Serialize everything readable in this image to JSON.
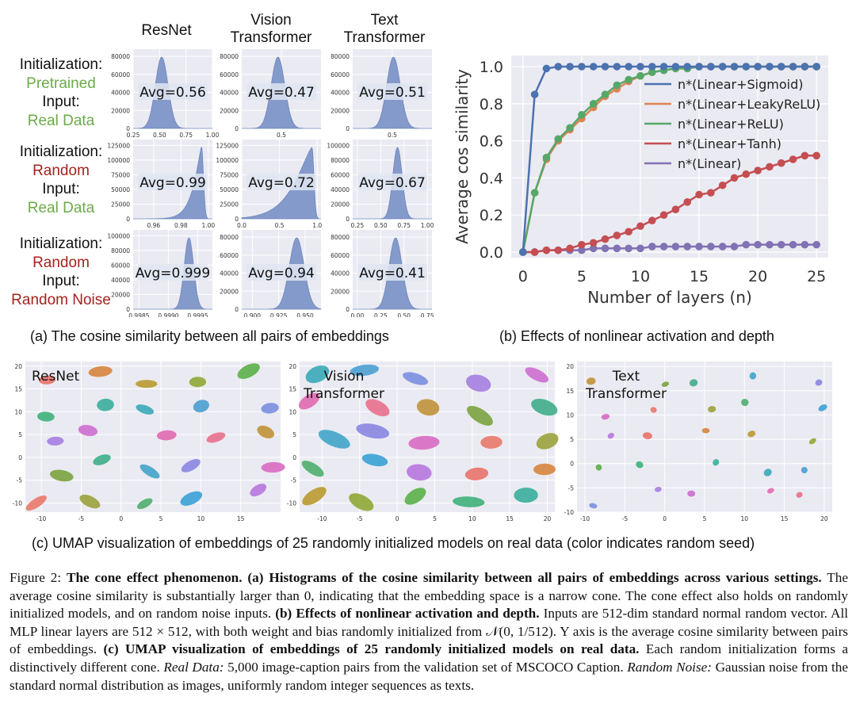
{
  "panel_a": {
    "columns": [
      "ResNet",
      "Vision Transformer",
      "Text Transformer"
    ],
    "rows": [
      {
        "init_label": "Initialization:",
        "init_value": "Pretrained",
        "input_label": "Input:",
        "input_value": "Real Data",
        "init_color": "#6bab4a",
        "input_color": "#6bab4a"
      },
      {
        "init_label": "Initialization:",
        "init_value": "Random",
        "input_label": "Input:",
        "input_value": "Real Data",
        "init_color": "#a3231f",
        "input_color": "#6bab4a"
      },
      {
        "init_label": "Initialization:",
        "init_value": "Random",
        "input_label": "Input:",
        "input_value": "Random Noise",
        "init_color": "#a3231f",
        "input_color": "#a3231f"
      }
    ],
    "subcaption": "(a) The cosine similarity between all pairs of embeddings"
  },
  "panel_b": {
    "subcaption": "(b) Effects of nonlinear activation and depth"
  },
  "panel_c": {
    "subcaption": "(c) UMAP visualization of embeddings of 25 randomly initialized models on real data (color indicates random seed)",
    "plots": [
      {
        "title": "ResNet",
        "xticks": [
          "-10",
          "-5",
          "0",
          "5",
          "10",
          "15"
        ],
        "yticks": [
          "20",
          "15",
          "10",
          "5",
          "0",
          "-5",
          "-10"
        ]
      },
      {
        "title": "Vision Transformer",
        "xticks": [
          "-10",
          "-5",
          "0",
          "5",
          "10",
          "15",
          "20"
        ],
        "yticks": [
          "20",
          "15",
          "10",
          "5",
          "0",
          "-5",
          "-10"
        ]
      },
      {
        "title": "Text Transformer",
        "xticks": [
          "-10",
          "-5",
          "0",
          "5",
          "10",
          "15",
          "20"
        ],
        "yticks": [
          "20",
          "15",
          "10",
          "5",
          "0",
          "-5",
          "-10"
        ]
      }
    ]
  },
  "caption": {
    "fig_label": "Figure 2:",
    "title": "The cone effect phenomenon.",
    "a_head": "(a) Histograms of the cosine similarity between all pairs of embeddings across various settings.",
    "a_text": "The average cosine similarity is substantially larger than 0, indicating that the embedding space is a narrow cone. The cone effect also holds on randomly initialized models, and on random noise inputs.",
    "b_head": "(b) Effects of nonlinear activation and depth.",
    "b_text1": "Inputs are 512-dim standard normal random vector. All MLP linear layers are 512 × 512, with both weight and bias randomly initialized from",
    "b_math": "𝒩(0, 1/512)",
    "b_text2": ". Y axis is the average cosine similarity between pairs of embeddings.",
    "c_head": "(c) UMAP visualization of embeddings of 25 randomly initialized models on real data.",
    "c_text": "Each random initialization forms a distinctively different cone.",
    "real_label": "Real Data:",
    "real_text": "5,000 image-caption pairs from the validation set of MSCOCO Caption.",
    "noise_label": "Random Noise:",
    "noise_text": "Gaussian noise from the standard normal distribution as images, uniformly random integer sequences as texts."
  },
  "chart_data": [
    {
      "id": "histograms",
      "type": "area",
      "title": "Histograms of cosine similarity",
      "panels": [
        {
          "row": 0,
          "col": 0,
          "avg_label": "Avg=0.56",
          "xlim": [
            0.25,
            1.0
          ],
          "xticks": [
            "0.25",
            "0.50",
            "0.75",
            "1.00"
          ],
          "yticks": [
            "0",
            "20000",
            "40000",
            "60000",
            "80000"
          ],
          "peak": 0.52,
          "spread": 0.06
        },
        {
          "row": 0,
          "col": 1,
          "avg_label": "Avg=0.47",
          "xlim": [
            0.15,
            0.85
          ],
          "xticks": [
            "0.5"
          ],
          "yticks": [
            "0",
            "20000",
            "40000",
            "60000",
            "80000"
          ],
          "peak": 0.47,
          "spread": 0.06
        },
        {
          "row": 0,
          "col": 2,
          "avg_label": "Avg=0.51",
          "xlim": [
            0.15,
            0.85
          ],
          "xticks": [
            "0.5"
          ],
          "yticks": [
            "0",
            "20000",
            "40000",
            "60000",
            "80000"
          ],
          "peak": 0.51,
          "spread": 0.06
        },
        {
          "row": 1,
          "col": 0,
          "avg_label": "Avg=0.99",
          "xlim": [
            0.945,
            1.003
          ],
          "xticks": [
            "0.96",
            "0.98",
            "1.00"
          ],
          "yticks": [
            "0",
            "25000",
            "50000",
            "75000",
            "100000",
            "125000"
          ],
          "peak": 0.995,
          "spread": 0.006
        },
        {
          "row": 1,
          "col": 1,
          "avg_label": "Avg=0.72",
          "xlim": [
            0.0,
            1.05
          ],
          "xticks": [
            "0.0",
            "0.5",
            "1.0"
          ],
          "yticks": [
            "0",
            "25000",
            "50000",
            "75000",
            "100000",
            "125000"
          ],
          "peak": 0.93,
          "spread": 0.22
        },
        {
          "row": 1,
          "col": 2,
          "avg_label": "Avg=0.67",
          "xlim": [
            0.2,
            1.05
          ],
          "xticks": [
            "0.25",
            "0.50",
            "0.75",
            "1.00"
          ],
          "yticks": [
            "0",
            "20000",
            "40000",
            "60000",
            "80000",
            "100000"
          ],
          "peak": 0.68,
          "spread": 0.05
        },
        {
          "row": 2,
          "col": 0,
          "avg_label": "Avg=0.999",
          "xlim": [
            0.9984,
            0.99975
          ],
          "xticks": [
            "0.9985",
            "0.9990",
            "0.9995"
          ],
          "yticks": [
            "0",
            "20000",
            "40000",
            "60000",
            "80000",
            "100000"
          ],
          "peak": 0.99935,
          "spread": 8e-05
        },
        {
          "row": 2,
          "col": 1,
          "avg_label": "Avg=0.94",
          "xlim": [
            0.89,
            0.965
          ],
          "xticks": [
            "0.900",
            "0.925",
            "0.950"
          ],
          "yticks": [
            "0",
            "20000",
            "40000",
            "60000",
            "80000"
          ],
          "peak": 0.942,
          "spread": 0.007
        },
        {
          "row": 2,
          "col": 2,
          "avg_label": "Avg=0.41",
          "xlim": [
            -0.05,
            0.8
          ],
          "xticks": [
            "0.00",
            "0.25",
            "0.50",
            "0.75"
          ],
          "yticks": [
            "0",
            "20000",
            "40000",
            "60000",
            "80000"
          ],
          "peak": 0.41,
          "spread": 0.07
        }
      ]
    },
    {
      "id": "depth",
      "type": "line",
      "title": "",
      "xlabel": "Number of layers (n)",
      "ylabel": "Average cos similarity",
      "xlim": [
        -1,
        26
      ],
      "ylim": [
        -0.03,
        1.06
      ],
      "xticks": [
        0,
        5,
        10,
        15,
        20,
        25
      ],
      "yticks": [
        0.0,
        0.2,
        0.4,
        0.6,
        0.8,
        1.0
      ],
      "ytick_labels": [
        "0.0",
        "0.2",
        "0.4",
        "0.6",
        "0.8",
        "1.0"
      ],
      "x": [
        0,
        1,
        2,
        3,
        4,
        5,
        6,
        7,
        8,
        9,
        10,
        11,
        12,
        13,
        14,
        15,
        16,
        17,
        18,
        19,
        20,
        21,
        22,
        23,
        24,
        25
      ],
      "series": [
        {
          "name": "n*(Linear+Sigmoid)",
          "color": "#4c72b0",
          "values": [
            0.0,
            0.85,
            0.99,
            1.0,
            1.0,
            1.0,
            1.0,
            1.0,
            1.0,
            1.0,
            1.0,
            1.0,
            1.0,
            1.0,
            1.0,
            1.0,
            1.0,
            1.0,
            1.0,
            1.0,
            1.0,
            1.0,
            1.0,
            1.0,
            1.0,
            1.0
          ]
        },
        {
          "name": "n*(Linear+LeakyReLU)",
          "color": "#dd8452",
          "values": [
            0.0,
            0.32,
            0.5,
            0.6,
            0.66,
            0.72,
            0.78,
            0.84,
            0.88,
            0.92,
            0.95,
            0.97,
            0.98,
            0.99,
            0.99,
            1.0,
            1.0,
            1.0,
            1.0,
            1.0,
            1.0,
            1.0,
            1.0,
            1.0,
            1.0,
            1.0
          ]
        },
        {
          "name": "n*(Linear+ReLU)",
          "color": "#55a868",
          "values": [
            0.0,
            0.32,
            0.51,
            0.61,
            0.67,
            0.74,
            0.8,
            0.85,
            0.9,
            0.93,
            0.95,
            0.97,
            0.98,
            0.99,
            0.99,
            1.0,
            1.0,
            1.0,
            1.0,
            1.0,
            1.0,
            1.0,
            1.0,
            1.0,
            1.0,
            1.0
          ]
        },
        {
          "name": "n*(Linear+Tanh)",
          "color": "#c44e52",
          "values": [
            0.0,
            0.0,
            0.01,
            0.01,
            0.02,
            0.04,
            0.05,
            0.07,
            0.09,
            0.11,
            0.14,
            0.17,
            0.2,
            0.23,
            0.27,
            0.31,
            0.32,
            0.36,
            0.4,
            0.42,
            0.44,
            0.46,
            0.48,
            0.5,
            0.52,
            0.52
          ]
        },
        {
          "name": "n*(Linear)",
          "color": "#8172b3",
          "values": [
            0.0,
            0.0,
            0.01,
            0.01,
            0.01,
            0.01,
            0.02,
            0.02,
            0.02,
            0.02,
            0.02,
            0.03,
            0.03,
            0.03,
            0.03,
            0.03,
            0.03,
            0.03,
            0.03,
            0.04,
            0.04,
            0.04,
            0.04,
            0.04,
            0.04,
            0.04
          ]
        }
      ],
      "legend": "top-right"
    }
  ]
}
